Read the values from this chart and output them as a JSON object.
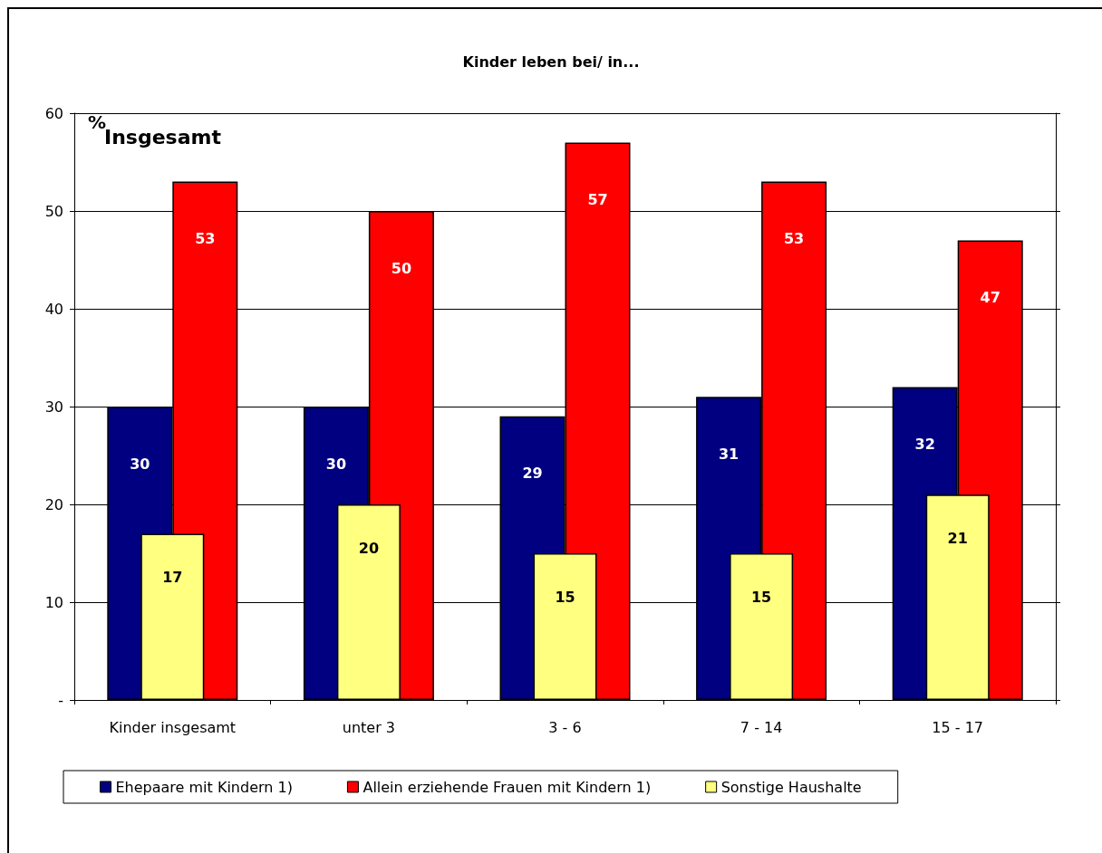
{
  "chart_data": {
    "type": "bar",
    "title": "Kinder leben bei/ in...",
    "ylabel": "%",
    "annotations": [
      "Insgesamt"
    ],
    "categories": [
      "Kinder insgesamt",
      "unter 3",
      "3 - 6",
      "7 - 14",
      "15 - 17"
    ],
    "series": [
      {
        "name": "Ehepaare mit Kindern 1)",
        "color": "#000080",
        "values": [
          30,
          30,
          29,
          31,
          32
        ]
      },
      {
        "name": "Allein erziehende Frauen mit Kindern 1)",
        "color": "#ff0000",
        "values": [
          53,
          50,
          57,
          53,
          47
        ]
      },
      {
        "name": "Sonstige Haushalte",
        "color": "#ffff80",
        "values": [
          17,
          20,
          15,
          15,
          21
        ]
      }
    ],
    "ylim": [
      0,
      60
    ],
    "yticks": [
      {
        "value": 0,
        "label": "-"
      },
      10,
      20,
      30,
      40,
      50,
      60
    ],
    "grid": "y",
    "legend": "bottom",
    "data_labels": true
  }
}
